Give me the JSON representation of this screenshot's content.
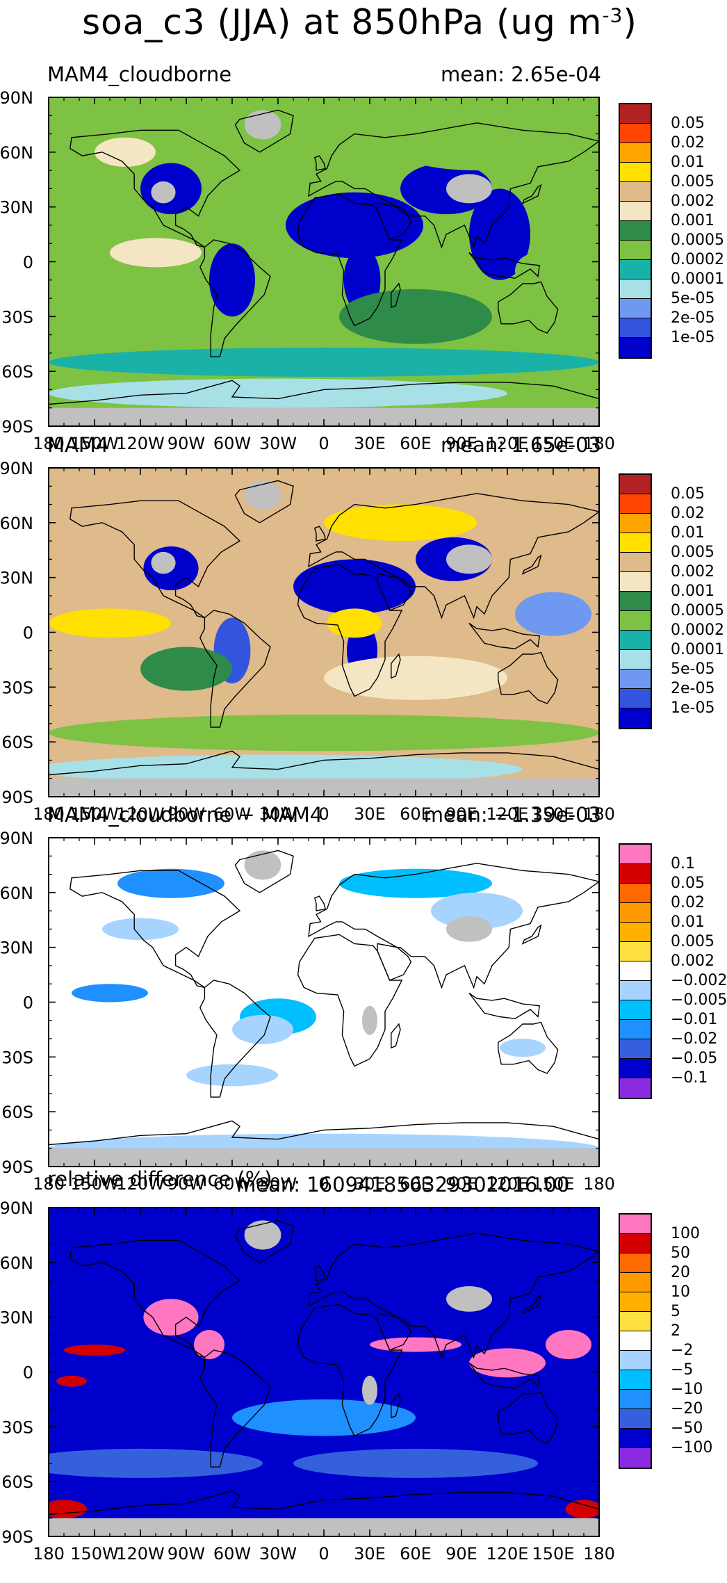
{
  "figure": {
    "title_main": "soa_c3 (JJA) at 850hPa (ug m",
    "title_exp": "-3",
    "title_close": ")"
  },
  "axes": {
    "x_ticks": [
      "180",
      "150W",
      "120W",
      "90W",
      "60W",
      "30W",
      "0",
      "30E",
      "60E",
      "90E",
      "120E",
      "150E",
      "180"
    ],
    "y_ticks": [
      "90N",
      "60N",
      "30N",
      "0",
      "30S",
      "60S",
      "90S"
    ]
  },
  "colors": {
    "land_gray": "#c0c0c0",
    "abs_scale": [
      "#0000cc",
      "#3355dd",
      "#6f98f0",
      "#a8e0e8",
      "#1ab1a8",
      "#7dc242",
      "#2e8b4a",
      "#f5e6c3",
      "#dfba8a",
      "#ffe000",
      "#ffa500",
      "#ff4500",
      "#b22222"
    ],
    "diff_scale": [
      "#8a2be2",
      "#0000cc",
      "#3560dd",
      "#1e90ff",
      "#00bfff",
      "#a6d4ff",
      "#ffffff",
      "#ffe040",
      "#ffb000",
      "#ff9900",
      "#ff6a00",
      "#d40000",
      "#ff77c0"
    ]
  },
  "chart_data": [
    {
      "type": "heatmap",
      "title": "MAM4_cloudborne",
      "mean_text": "mean: 2.65e-04",
      "x": [
        -180,
        -150,
        -120,
        -90,
        -60,
        -30,
        0,
        30,
        60,
        90,
        120,
        150,
        180
      ],
      "y": [
        90,
        60,
        30,
        0,
        -30,
        -60,
        -90
      ],
      "xlim": [
        -180,
        180
      ],
      "ylim": [
        -90,
        90
      ],
      "colorbar_levels": [
        "0.05",
        "0.02",
        "0.01",
        "0.005",
        "0.002",
        "0.001",
        "0.0005",
        "0.0002",
        "0.0001",
        "5e-05",
        "2e-05",
        "1e-05"
      ],
      "colorbar_scale": "abs",
      "background_level": "0.0002"
    },
    {
      "type": "heatmap",
      "title": "MAM4",
      "mean_text": "mean: 1.65e-03",
      "x": [
        -180,
        -150,
        -120,
        -90,
        -60,
        -30,
        0,
        30,
        60,
        90,
        120,
        150,
        180
      ],
      "y": [
        90,
        60,
        30,
        0,
        -30,
        -60,
        -90
      ],
      "xlim": [
        -180,
        180
      ],
      "ylim": [
        -90,
        90
      ],
      "colorbar_levels": [
        "0.05",
        "0.02",
        "0.01",
        "0.005",
        "0.002",
        "0.001",
        "0.0005",
        "0.0002",
        "0.0001",
        "5e-05",
        "2e-05",
        "1e-05"
      ],
      "colorbar_scale": "abs",
      "background_level": "0.002"
    },
    {
      "type": "heatmap",
      "title": "MAM4_cloudborne − MAM4",
      "mean_text": "mean: −1.39e-03",
      "x": [
        -180,
        -150,
        -120,
        -90,
        -60,
        -30,
        0,
        30,
        60,
        90,
        120,
        150,
        180
      ],
      "y": [
        90,
        60,
        30,
        0,
        -30,
        -60,
        -90
      ],
      "xlim": [
        -180,
        180
      ],
      "ylim": [
        -90,
        90
      ],
      "colorbar_levels": [
        "0.1",
        "0.05",
        "0.02",
        "0.01",
        "0.005",
        "0.002",
        "−0.002",
        "−0.005",
        "−0.01",
        "−0.02",
        "−0.05",
        "−0.1"
      ],
      "colorbar_scale": "diff",
      "background_level": "−0.002"
    },
    {
      "type": "heatmap",
      "title": "relative difference (%)",
      "mean_text": "mean: 16094185632930201б.00",
      "x": [
        -180,
        -150,
        -120,
        -90,
        -60,
        -30,
        0,
        30,
        60,
        90,
        120,
        150,
        180
      ],
      "y": [
        90,
        60,
        30,
        0,
        -30,
        -60,
        -90
      ],
      "xlim": [
        -180,
        180
      ],
      "ylim": [
        -90,
        90
      ],
      "colorbar_levels": [
        "100",
        "50",
        "20",
        "10",
        "5",
        "2",
        "−2",
        "−5",
        "−10",
        "−20",
        "−50",
        "−100"
      ],
      "colorbar_scale": "diff",
      "background_level": "−100"
    }
  ]
}
